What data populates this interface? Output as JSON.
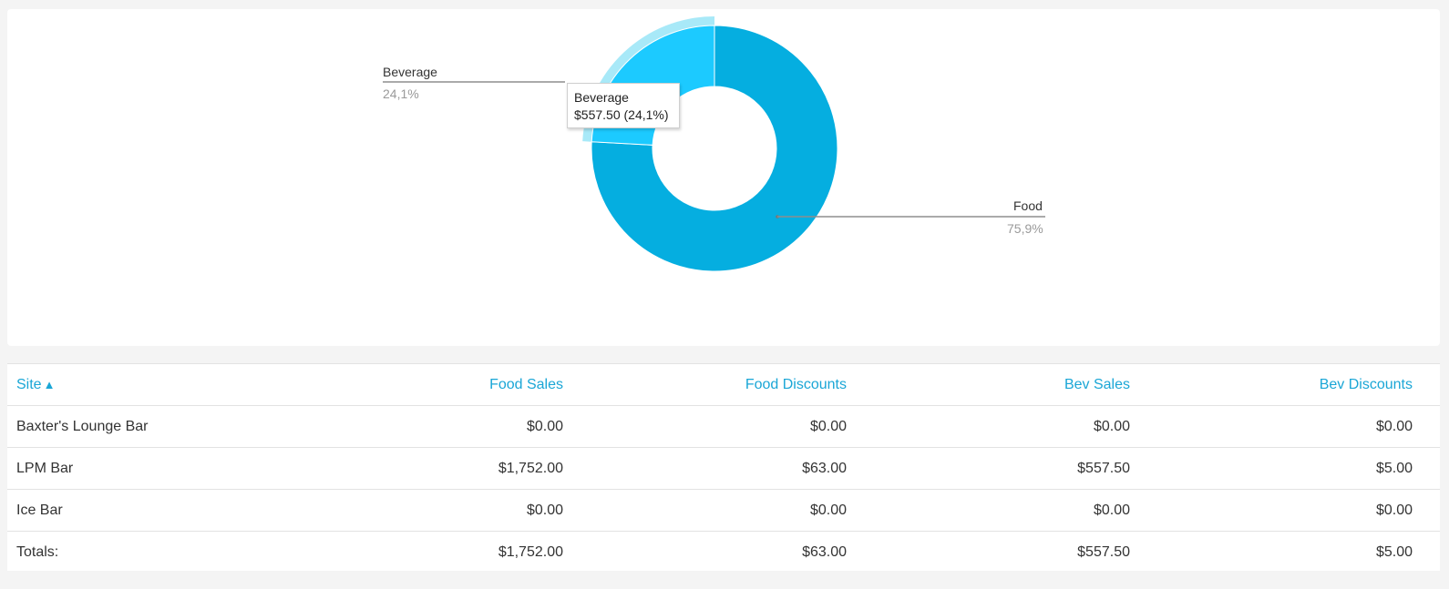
{
  "chart_data": {
    "type": "pie",
    "variant": "donut",
    "categories": [
      "Food",
      "Beverage"
    ],
    "values": [
      1752.0,
      557.5
    ],
    "percent_labels": [
      "75,9%",
      "24,1%"
    ],
    "colors": [
      "#05aee0",
      "#1ccaff"
    ],
    "highlight_color": "#a8e9f8",
    "legend": "none"
  },
  "tooltip": {
    "title": "Beverage",
    "value": "$557.50 (24,1%)"
  },
  "table": {
    "headers": [
      "Site",
      "Food Sales",
      "Food Discounts",
      "Bev Sales",
      "Bev Discounts"
    ],
    "sort_indicator": "▲",
    "rows": [
      [
        "Baxter's Lounge Bar",
        "$0.00",
        "$0.00",
        "$0.00",
        "$0.00"
      ],
      [
        "LPM Bar",
        "$1,752.00",
        "$63.00",
        "$557.50",
        "$5.00"
      ],
      [
        "Ice Bar",
        "$0.00",
        "$0.00",
        "$0.00",
        "$0.00"
      ]
    ],
    "totals": [
      "Totals:",
      "$1,752.00",
      "$63.00",
      "$557.50",
      "$5.00"
    ]
  }
}
